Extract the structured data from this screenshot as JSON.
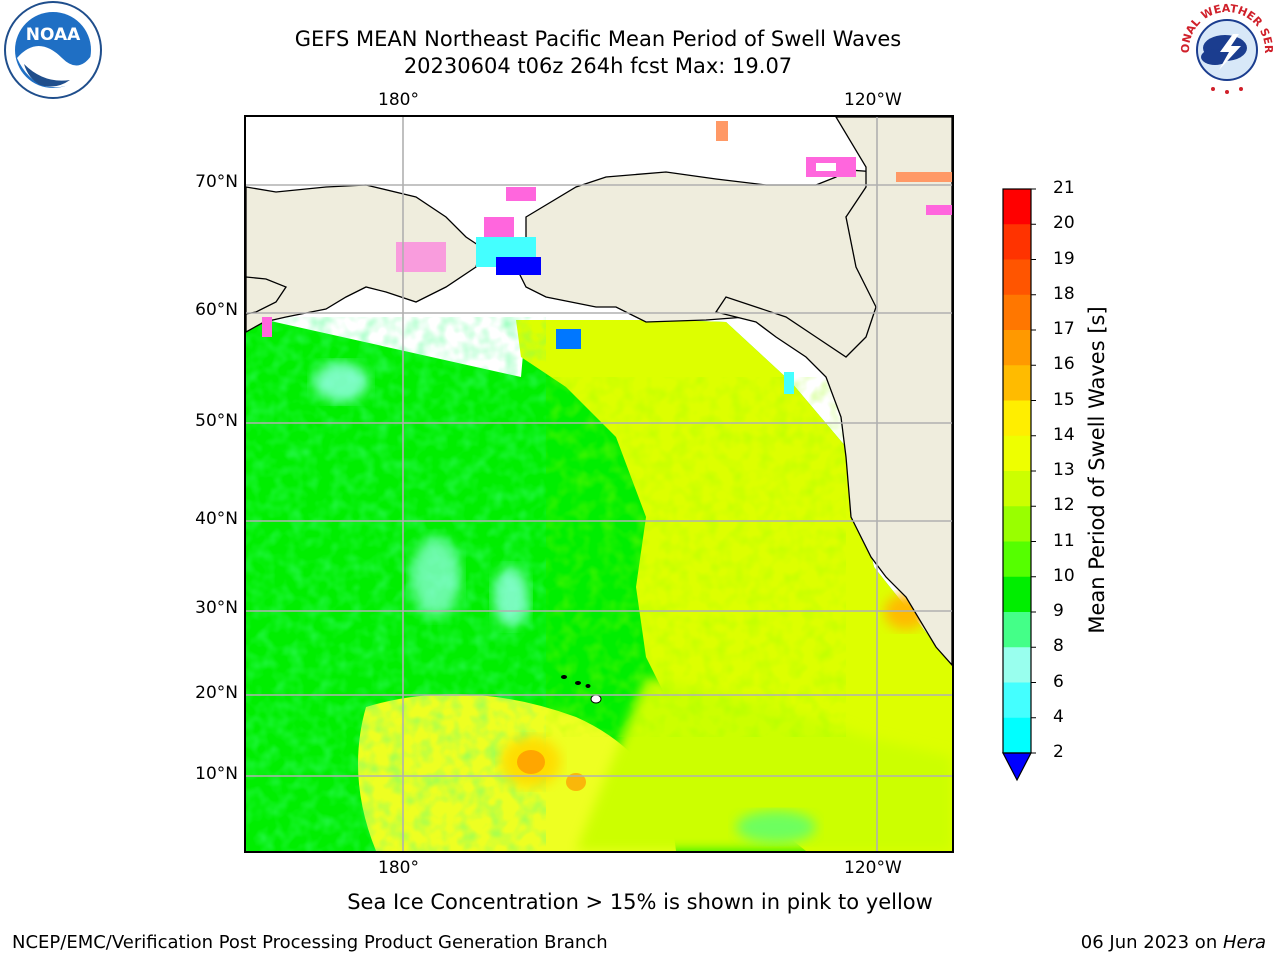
{
  "title": {
    "line1": "GEFS MEAN Northeast Pacific Mean Period of Swell Waves",
    "line2": "20230604 t06z 264h fcst   Max: 19.07"
  },
  "map": {
    "lon_labels_top": [
      "180°",
      "120°W"
    ],
    "lon_labels_bottom": [
      "180°",
      "120°W"
    ],
    "lat_labels": [
      "70°N",
      "60°N",
      "50°N",
      "40°N",
      "30°N",
      "20°N",
      "10°N"
    ],
    "land_color": "#efeddd",
    "grid_color": "#b0b0b0"
  },
  "colorbar": {
    "label": "Mean Period of Swell Waves [s]",
    "ticks": [
      "21",
      "20",
      "19",
      "18",
      "17",
      "16",
      "15",
      "14",
      "13",
      "12",
      "11",
      "10",
      "9",
      "8",
      "6",
      "4",
      "2"
    ],
    "colors": [
      "#ff0000",
      "#ff3300",
      "#ff5500",
      "#ff7700",
      "#ff9900",
      "#ffbb00",
      "#ffee00",
      "#eeff00",
      "#ccff00",
      "#99ff00",
      "#55ff00",
      "#00ee00",
      "#44ff88",
      "#99ffee",
      "#44ffff",
      "#00ffff",
      "#00ccff",
      "#0077ff",
      "#0000ff"
    ]
  },
  "caption": "Sea Ice Concentration > 15% is shown in pink to yellow",
  "footer": {
    "left": "NCEP/EMC/Verification Post Processing Product Generation Branch",
    "right_date": "06 Jun 2023 on ",
    "right_machine": "Hera"
  },
  "logos": {
    "noaa_text": "NOAA",
    "nws_text": "NATIONAL WEATHER SERVICE"
  }
}
